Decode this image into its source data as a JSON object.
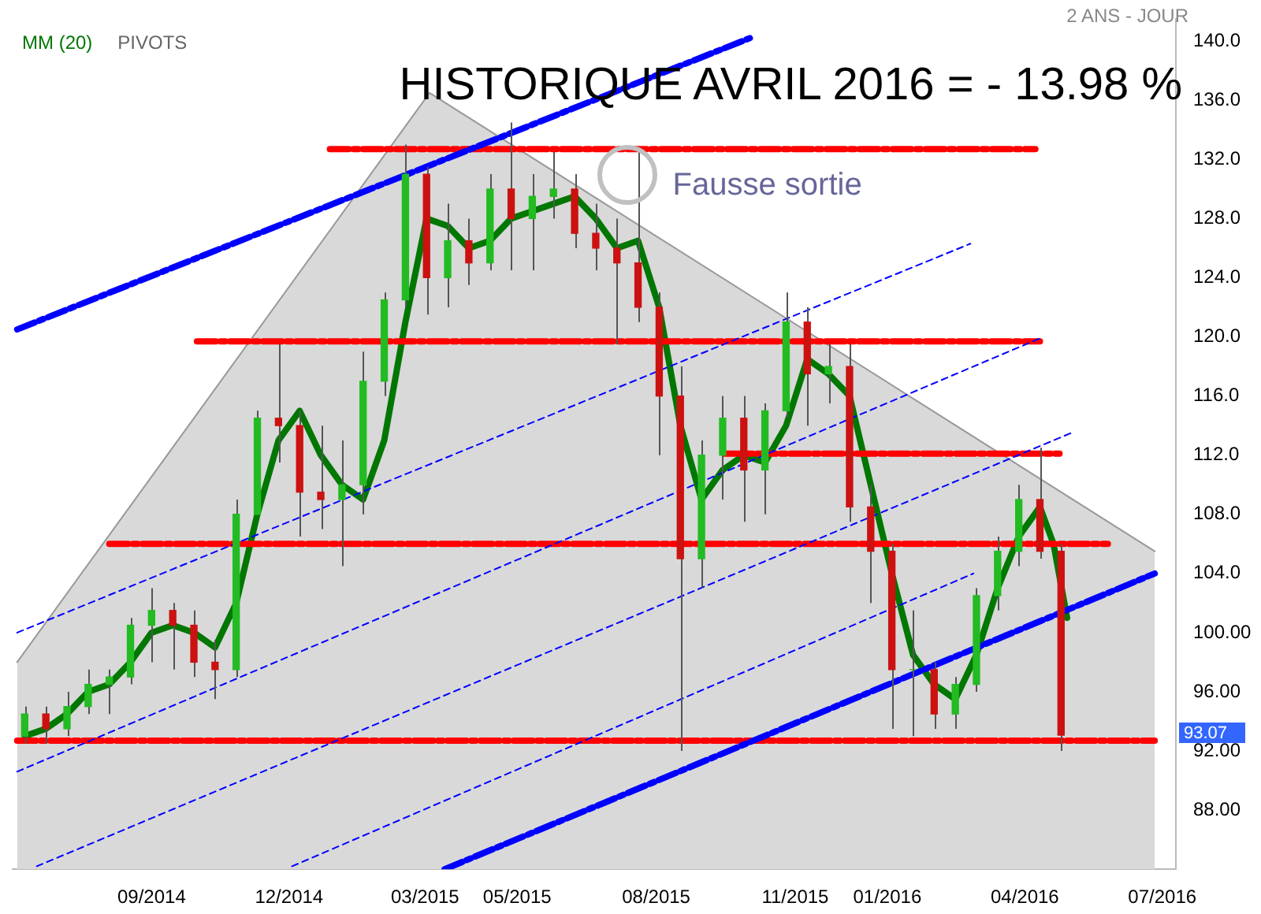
{
  "chart_data": {
    "type": "candlestick",
    "title": "HISTORIQUE AVRIL 2016 = - 13.98 %",
    "subtitle": "2 ANS - JOUR",
    "legend": "top left",
    "annotations": [
      "PIVOTS",
      {
        "text": "Fausse sortie",
        "x": "2015-07-20",
        "y": 130.2
      },
      "93.07"
    ],
    "xlim": [
      "2014-06-01",
      "2016-07-10"
    ],
    "xticks": [
      {
        "value": "2014-09-01",
        "label": "09/2014"
      },
      {
        "value": "2014-12-01",
        "label": "12/2014"
      },
      {
        "value": "2015-03-01",
        "label": "03/2015"
      },
      {
        "value": "2015-05-01",
        "label": "05/2015"
      },
      {
        "value": "2015-08-01",
        "label": "08/2015"
      },
      {
        "value": "2015-11-01",
        "label": "11/2015"
      },
      {
        "value": "2016-01-01",
        "label": "01/2016"
      },
      {
        "value": "2016-04-01",
        "label": "04/2016"
      },
      {
        "value": "2016-07-01",
        "label": "07/2016"
      }
    ],
    "ylim": [
      84,
      141.5
    ],
    "yticks": [
      {
        "value": 88,
        "label": "88.00"
      },
      {
        "value": 92,
        "label": "92.00"
      },
      {
        "value": 96,
        "label": "96.00"
      },
      {
        "value": 100,
        "label": "100.00"
      },
      {
        "value": 104,
        "label": "104.0"
      },
      {
        "value": 108,
        "label": "108.0"
      },
      {
        "value": 112,
        "label": "112.0"
      },
      {
        "value": 116,
        "label": "116.0"
      },
      {
        "value": 120,
        "label": "120.0"
      },
      {
        "value": 124,
        "label": "124.0"
      },
      {
        "value": 128,
        "label": "128.0"
      },
      {
        "value": 132,
        "label": "132.0"
      },
      {
        "value": 136,
        "label": "136.0"
      },
      {
        "value": 140,
        "label": "140.0"
      }
    ],
    "x": [
      "2014-06-09",
      "2014-06-23",
      "2014-07-07",
      "2014-07-21",
      "2014-08-04",
      "2014-08-18",
      "2014-09-01",
      "2014-09-15",
      "2014-09-29",
      "2014-10-13",
      "2014-10-27",
      "2014-11-10",
      "2014-11-24",
      "2014-12-08",
      "2014-12-22",
      "2015-01-05",
      "2015-01-19",
      "2015-02-02",
      "2015-02-16",
      "2015-03-02",
      "2015-03-16",
      "2015-03-30",
      "2015-04-13",
      "2015-04-27",
      "2015-05-11",
      "2015-05-25",
      "2015-06-08",
      "2015-06-22",
      "2015-07-06",
      "2015-07-20",
      "2015-08-03",
      "2015-08-17",
      "2015-08-31",
      "2015-09-14",
      "2015-09-28",
      "2015-10-12",
      "2015-10-26",
      "2015-11-09",
      "2015-11-23",
      "2015-12-07",
      "2015-12-21",
      "2016-01-04",
      "2016-01-18",
      "2016-02-01",
      "2016-02-15",
      "2016-02-29",
      "2016-03-14",
      "2016-03-28",
      "2016-04-11",
      "2016-04-25"
    ],
    "ohlc": [
      [
        93,
        95,
        92.5,
        94.5
      ],
      [
        94.5,
        95,
        92.5,
        93.5
      ],
      [
        93.5,
        96,
        93,
        95
      ],
      [
        95,
        97.5,
        94.5,
        96.5
      ],
      [
        96.5,
        97.5,
        94.5,
        97
      ],
      [
        97,
        101,
        96.5,
        100.5
      ],
      [
        100.5,
        103,
        98,
        101.5
      ],
      [
        101.5,
        102,
        97.5,
        100.5
      ],
      [
        100.5,
        101.5,
        97,
        98
      ],
      [
        98,
        99.5,
        95.5,
        97.5
      ],
      [
        97.5,
        109,
        97,
        108
      ],
      [
        108,
        115,
        108,
        114.5
      ],
      [
        114.5,
        119.5,
        111.5,
        114
      ],
      [
        114,
        115,
        106.5,
        109.5
      ],
      [
        109.5,
        114,
        107,
        109
      ],
      [
        109,
        113,
        104.5,
        110
      ],
      [
        110,
        119,
        108,
        117
      ],
      [
        117,
        123,
        116,
        122.5
      ],
      [
        122.5,
        133,
        122,
        131
      ],
      [
        131,
        131.5,
        121.5,
        124
      ],
      [
        124,
        129,
        122,
        126.5
      ],
      [
        126.5,
        128,
        123.5,
        125
      ],
      [
        125,
        131,
        124.5,
        130
      ],
      [
        130,
        134.5,
        124.5,
        128
      ],
      [
        128,
        131,
        124.5,
        129.5
      ],
      [
        129.5,
        132.5,
        128,
        130
      ],
      [
        130,
        131,
        126,
        127
      ],
      [
        127,
        129,
        124.5,
        126
      ],
      [
        126,
        128,
        119.5,
        125
      ],
      [
        125,
        132.5,
        121,
        122
      ],
      [
        122,
        123,
        112,
        116
      ],
      [
        116,
        118,
        92,
        105
      ],
      [
        105,
        113,
        103,
        112
      ],
      [
        112,
        116,
        109,
        114.5
      ],
      [
        114.5,
        116,
        107.5,
        111
      ],
      [
        111,
        115.5,
        108,
        115
      ],
      [
        115,
        123,
        114.5,
        121
      ],
      [
        121,
        122,
        114,
        117.5
      ],
      [
        117.5,
        119.5,
        115.5,
        118
      ],
      [
        118,
        119.5,
        107.5,
        108.5
      ],
      [
        108.5,
        110,
        102,
        105.5
      ],
      [
        105.5,
        106,
        93.5,
        97.5
      ],
      [
        97.5,
        101.5,
        93,
        97.5
      ],
      [
        97.5,
        98,
        93.5,
        94.5
      ],
      [
        94.5,
        97,
        93.5,
        96.5
      ],
      [
        96.5,
        103,
        96,
        102.5
      ],
      [
        102.5,
        106.5,
        101.5,
        105.5
      ],
      [
        105.5,
        110,
        104.5,
        109
      ],
      [
        109,
        112.5,
        105,
        105.5
      ],
      [
        105.5,
        106,
        92,
        93.07
      ]
    ],
    "series": [
      {
        "type": "area",
        "color": "#d9d9d9",
        "line_style": "solid",
        "x": [
          "2014-06-04",
          "2015-03-04",
          "2016-06-26"
        ],
        "values": [
          98,
          136.5,
          105.5
        ]
      },
      {
        "type": "line",
        "color": "#0000ff",
        "line_style": "dotted",
        "x": [
          "2014-06-04",
          "2016-02-25"
        ],
        "values": [
          100,
          126.3
        ]
      },
      {
        "type": "line",
        "color": "#0000ff",
        "line_style": "dotted",
        "x": [
          "2014-06-04",
          "2016-04-11"
        ],
        "values": [
          90.6,
          119.9
        ]
      },
      {
        "type": "line",
        "color": "#0000ff",
        "line_style": "dotted",
        "x": [
          "2014-06-17",
          "2016-05-04"
        ],
        "values": [
          84.2,
          113.6
        ]
      },
      {
        "type": "line",
        "color": "#0000ff",
        "line_style": "dotted",
        "x": [
          "2014-12-03",
          "2016-02-27"
        ],
        "values": [
          84.2,
          104
        ]
      },
      {
        "type": "line",
        "color": "#0000ff",
        "line_style": "dashed",
        "x": [
          "2014-06-04",
          "2015-10-02"
        ],
        "values": [
          120.5,
          140.2
        ]
      },
      {
        "type": "line",
        "color": "#0000ff",
        "line_style": "dashed",
        "x": [
          "2015-03-14",
          "2016-06-26"
        ],
        "values": [
          84,
          104
        ]
      },
      {
        "type": "line",
        "color": "#ff0000",
        "line_style": "dashed",
        "x": [
          "2014-12-28",
          "2016-04-08"
        ],
        "values": [
          132.7,
          132.7
        ]
      },
      {
        "type": "line",
        "color": "#ff0000",
        "line_style": "dashed",
        "x": [
          "2014-10-01",
          "2016-04-11"
        ],
        "values": [
          119.7,
          119.7
        ]
      },
      {
        "type": "line",
        "color": "#ff0000",
        "line_style": "dashed",
        "x": [
          "2015-09-15",
          "2016-04-24"
        ],
        "values": [
          112.1,
          112.1
        ]
      },
      {
        "type": "line",
        "color": "#ff0000",
        "line_style": "dashed",
        "x": [
          "2014-08-04",
          "2016-05-26"
        ],
        "values": [
          106,
          106
        ]
      },
      {
        "type": "line",
        "color": "#ff0000",
        "line_style": "dashed",
        "x": [
          "2014-06-04",
          "2016-06-26"
        ],
        "values": [
          92.7,
          92.7
        ]
      },
      {
        "type": "line",
        "name": "MM (20)",
        "color": "#007700",
        "line_style": "solid",
        "x": [
          "2014-06-09",
          "2014-06-23",
          "2014-07-07",
          "2014-07-21",
          "2014-08-04",
          "2014-08-18",
          "2014-09-01",
          "2014-09-15",
          "2014-09-29",
          "2014-10-13",
          "2014-10-27",
          "2014-11-10",
          "2014-11-24",
          "2014-12-08",
          "2014-12-22",
          "2015-01-05",
          "2015-01-19",
          "2015-02-02",
          "2015-02-16",
          "2015-03-02",
          "2015-03-16",
          "2015-03-30",
          "2015-04-13",
          "2015-04-27",
          "2015-05-11",
          "2015-05-25",
          "2015-06-08",
          "2015-06-22",
          "2015-07-06",
          "2015-07-20",
          "2015-08-03",
          "2015-08-17",
          "2015-08-31",
          "2015-09-14",
          "2015-09-28",
          "2015-10-12",
          "2015-10-26",
          "2015-11-09",
          "2015-11-23",
          "2015-12-07",
          "2015-12-21",
          "2016-01-04",
          "2016-01-18",
          "2016-02-01",
          "2016-02-15",
          "2016-02-29",
          "2016-03-14",
          "2016-03-28",
          "2016-04-11",
          "2016-04-20",
          "2016-04-29"
        ],
        "values": [
          93,
          93.5,
          94.5,
          96,
          96.5,
          98,
          100,
          100.5,
          100,
          99,
          102,
          108,
          113,
          115,
          112,
          110,
          109,
          113,
          121,
          128,
          127.5,
          126,
          126.5,
          128,
          128.5,
          129,
          129.5,
          128,
          126,
          126.5,
          122,
          114,
          109,
          111,
          112,
          111.5,
          114,
          118.5,
          117.5,
          116,
          110,
          104,
          98.5,
          96.5,
          95.5,
          98.5,
          103,
          106.5,
          108.5,
          106,
          101
        ]
      }
    ]
  }
}
